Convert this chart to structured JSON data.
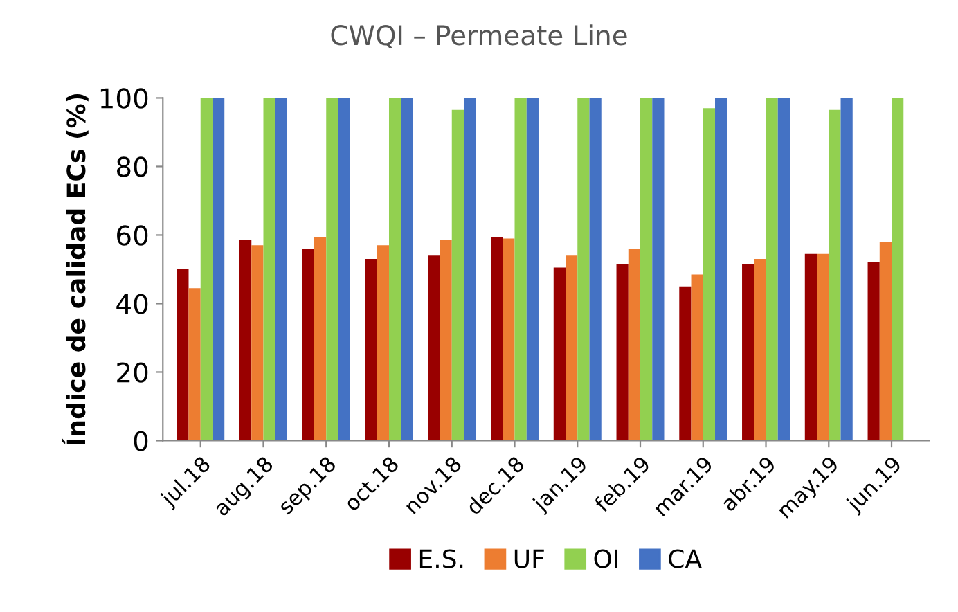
{
  "chart_data": {
    "type": "bar",
    "title": "CWQI – Permeate Line",
    "ylabel": "Índice de calidad ECs (%)",
    "categories": [
      "jul.18",
      "aug.18",
      "sep.18",
      "oct.18",
      "nov.18",
      "dec.18",
      "jan.19",
      "feb.19",
      "mar.19",
      "abr.19",
      "may.19",
      "jun.19"
    ],
    "series": [
      {
        "name": "E.S.",
        "color": "#990000",
        "values": [
          50,
          58.5,
          56,
          53,
          54,
          59.5,
          50.5,
          51.5,
          45,
          51.5,
          54.5,
          52
        ]
      },
      {
        "name": "UF",
        "color": "#ed7d31",
        "values": [
          44.5,
          57,
          59.5,
          57,
          58.5,
          59,
          54,
          56,
          48.5,
          53,
          54.5,
          58
        ]
      },
      {
        "name": "OI",
        "color": "#92d050",
        "values": [
          100,
          100,
          100,
          100,
          96.5,
          100,
          100,
          100,
          97,
          100,
          96.5,
          100
        ]
      },
      {
        "name": "CA",
        "color": "#4472c4",
        "values": [
          100,
          100,
          100,
          100,
          100,
          100,
          100,
          100,
          100,
          100,
          100,
          null
        ]
      }
    ],
    "ylim": [
      0,
      100
    ],
    "yticks": [
      0,
      20,
      40,
      60,
      80,
      100
    ],
    "grid": false,
    "legend": "bottom"
  }
}
